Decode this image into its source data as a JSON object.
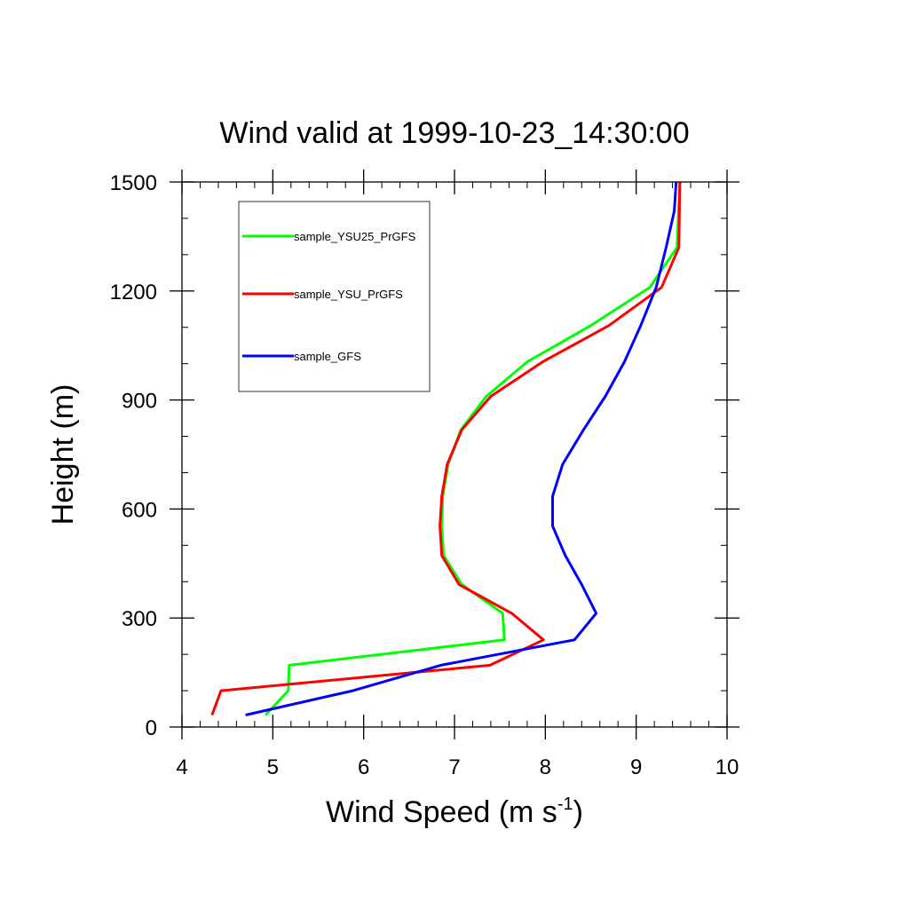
{
  "chart_data": {
    "type": "line",
    "title": "Wind valid at 1999-10-23_14:30:00",
    "xlabel": "Wind Speed (m s",
    "xlabel_sup": "-1",
    "xlabel_close": ")",
    "ylabel": "Height (m)",
    "xlim": [
      4,
      10
    ],
    "ylim": [
      0,
      1500
    ],
    "x_ticks": [
      "4",
      "5",
      "6",
      "7",
      "8",
      "9",
      "10"
    ],
    "y_ticks": [
      "0",
      "300",
      "600",
      "900",
      "1200",
      "1500"
    ],
    "grid": false,
    "legend_position": "top-left",
    "series": [
      {
        "name": "sample_YSU25_PrGFS",
        "color": "#00ff00",
        "points": [
          [
            4.92,
            33
          ],
          [
            5.17,
            100
          ],
          [
            5.18,
            170
          ],
          [
            7.55,
            240
          ],
          [
            7.53,
            313
          ],
          [
            7.08,
            392
          ],
          [
            6.88,
            472
          ],
          [
            6.86,
            553
          ],
          [
            6.87,
            635
          ],
          [
            6.93,
            723
          ],
          [
            7.07,
            818
          ],
          [
            7.35,
            910
          ],
          [
            7.8,
            1005
          ],
          [
            8.5,
            1105
          ],
          [
            9.15,
            1210
          ],
          [
            9.45,
            1320
          ],
          [
            9.48,
            1500
          ]
        ]
      },
      {
        "name": "sample_YSU_PrGFS",
        "color": "#ff0000",
        "points": [
          [
            4.33,
            33
          ],
          [
            4.43,
            100
          ],
          [
            7.39,
            170
          ],
          [
            7.98,
            240
          ],
          [
            7.63,
            313
          ],
          [
            7.05,
            392
          ],
          [
            6.86,
            472
          ],
          [
            6.84,
            553
          ],
          [
            6.86,
            635
          ],
          [
            6.92,
            723
          ],
          [
            7.08,
            818
          ],
          [
            7.4,
            910
          ],
          [
            7.97,
            1005
          ],
          [
            8.7,
            1105
          ],
          [
            9.28,
            1210
          ],
          [
            9.47,
            1320
          ],
          [
            9.48,
            1500
          ]
        ]
      },
      {
        "name": "sample_GFS",
        "color": "#0000ff",
        "points": [
          [
            4.7,
            33
          ],
          [
            5.88,
            100
          ],
          [
            6.85,
            170
          ],
          [
            8.32,
            240
          ],
          [
            8.56,
            313
          ],
          [
            8.4,
            392
          ],
          [
            8.22,
            472
          ],
          [
            8.08,
            553
          ],
          [
            8.08,
            635
          ],
          [
            8.19,
            723
          ],
          [
            8.42,
            818
          ],
          [
            8.66,
            910
          ],
          [
            8.87,
            1005
          ],
          [
            9.05,
            1105
          ],
          [
            9.22,
            1210
          ],
          [
            9.33,
            1320
          ],
          [
            9.42,
            1420
          ],
          [
            9.44,
            1500
          ]
        ]
      }
    ]
  }
}
